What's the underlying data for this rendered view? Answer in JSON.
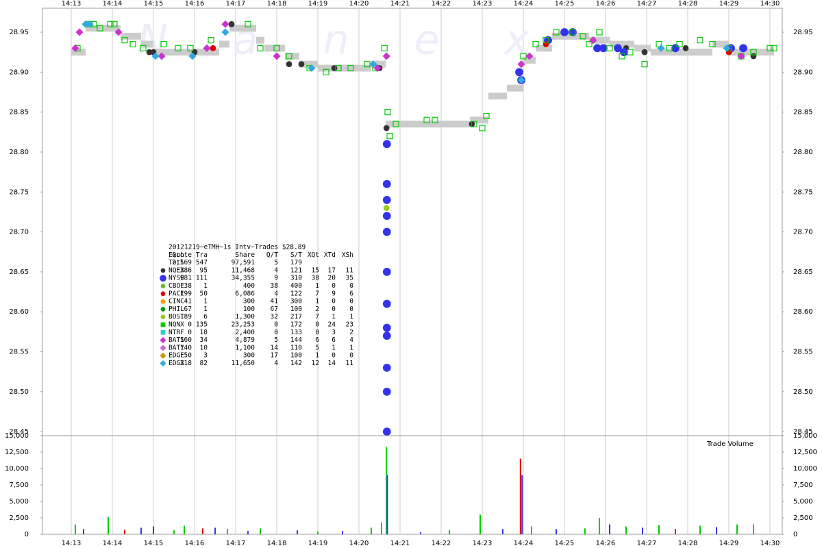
{
  "chart_data": [
    {
      "type": "scatter",
      "watermark": "Nanex",
      "xlim": [
        12.3,
        30.3
      ],
      "xticks": [
        {
          "value": 13,
          "label": "14:13"
        },
        {
          "value": 14,
          "label": "14:14"
        },
        {
          "value": 15,
          "label": "14:15"
        },
        {
          "value": 16,
          "label": "14:16"
        },
        {
          "value": 17,
          "label": "14:17"
        },
        {
          "value": 18,
          "label": "14:18"
        },
        {
          "value": 19,
          "label": "14:19"
        },
        {
          "value": 20,
          "label": "14:20"
        },
        {
          "value": 21,
          "label": "14:21"
        },
        {
          "value": 22,
          "label": "14:22"
        },
        {
          "value": 23,
          "label": "14:23"
        },
        {
          "value": 24,
          "label": "14:24"
        },
        {
          "value": 25,
          "label": "14:25"
        },
        {
          "value": 26,
          "label": "14:26"
        },
        {
          "value": 27,
          "label": "14:27"
        },
        {
          "value": 28,
          "label": "14:28"
        },
        {
          "value": 29,
          "label": "14:29"
        },
        {
          "value": 30,
          "label": "14:30"
        }
      ],
      "ylim": [
        28.445,
        28.98
      ],
      "yticks": [
        28.45,
        {
          "value": 28.5,
          "label": "28.50"
        },
        28.55,
        {
          "value": 28.6,
          "label": "28.60"
        },
        28.65,
        {
          "value": 28.7,
          "label": "28.70"
        },
        28.75,
        {
          "value": 28.8,
          "label": "28.80"
        },
        28.85,
        {
          "value": 28.9,
          "label": "28.90"
        },
        28.95
      ],
      "grid": true,
      "nbbo_band": {
        "color": "#cccccc",
        "edges": [
          13.0,
          13.35,
          14.2,
          14.7,
          15.0,
          15.7,
          16.6,
          16.85,
          17.5,
          17.7,
          18.2,
          18.55,
          19.0,
          19.9,
          20.3,
          20.65,
          21.0,
          22.7,
          23.15,
          23.6,
          24.0,
          24.3,
          24.7,
          25.6,
          26.1,
          26.7,
          27.1,
          28.6,
          29.0,
          30.1
        ],
        "values": [
          28.925,
          28.955,
          28.945,
          28.935,
          28.925,
          28.925,
          28.935,
          28.955,
          28.94,
          28.93,
          28.92,
          28.91,
          28.905,
          28.905,
          28.91,
          28.835,
          28.835,
          28.84,
          28.87,
          28.88,
          28.915,
          28.93,
          28.945,
          28.94,
          28.935,
          28.93,
          28.925,
          28.935,
          28.925
        ]
      },
      "table": {
        "title": "20121219~eTMH~1s Intv~Trades $28.89",
        "header": [
          "Exch",
          "Quote",
          "Tra",
          "Share",
          "Q/T",
          "S/T",
          "XQt",
          "XTd",
          "XSh"
        ],
        "total": {
          "name": "Totl",
          "stats": [
            "2,569",
            "547",
            "97,591",
            "5",
            "179"
          ]
        }
      },
      "series": [
        {
          "name": "NQEX",
          "color": "#333333",
          "marker": "circle",
          "filled": true,
          "stats": [
            "386",
            "95",
            "11,468",
            "4",
            "121",
            "15",
            "17",
            "11"
          ],
          "x": [
            14.9,
            15.0,
            16.0,
            16.9,
            18.3,
            18.6,
            19.4,
            20.5,
            20.67,
            22.75,
            26.5,
            26.95,
            27.95,
            29.6
          ],
          "values": [
            28.925,
            28.925,
            28.925,
            28.96,
            28.91,
            28.91,
            28.905,
            28.905,
            28.83,
            28.835,
            28.93,
            28.925,
            28.93,
            28.92
          ]
        },
        {
          "name": "NYSE",
          "color": "#3333ee",
          "marker": "bigcircle",
          "filled": true,
          "stats": [
            "981",
            "111",
            "34,355",
            "9",
            "310",
            "38",
            "20",
            "35"
          ],
          "x": [
            20.68,
            20.68,
            20.68,
            20.68,
            20.68,
            20.68,
            20.68,
            20.68,
            20.68,
            20.68,
            20.68,
            20.68,
            23.9,
            23.95,
            24.6,
            25.0,
            25.2,
            25.8,
            25.95,
            26.3,
            26.45,
            27.7,
            29.05,
            29.35
          ],
          "values": [
            28.81,
            28.76,
            28.74,
            28.72,
            28.7,
            28.65,
            28.61,
            28.58,
            28.57,
            28.53,
            28.5,
            28.45,
            28.9,
            28.89,
            28.94,
            28.95,
            28.95,
            28.93,
            28.93,
            28.93,
            28.925,
            28.93,
            28.93,
            28.93
          ]
        },
        {
          "name": "CBOE",
          "color": "#66bb33",
          "marker": "circle",
          "filled": true,
          "stats": [
            "38",
            "1",
            "400",
            "38",
            "400",
            "1",
            "0",
            "0"
          ],
          "x": [],
          "values": []
        },
        {
          "name": "PACF",
          "color": "#dd0000",
          "marker": "circle",
          "filled": true,
          "stats": [
            "199",
            "50",
            "6,086",
            "4",
            "122",
            "7",
            "9",
            "6"
          ],
          "x": [
            16.45,
            24.55,
            29.0
          ],
          "values": [
            28.93,
            28.935,
            28.925
          ]
        },
        {
          "name": "CINC",
          "color": "#ff9900",
          "marker": "circle",
          "filled": true,
          "stats": [
            "41",
            "1",
            "300",
            "41",
            "300",
            "1",
            "0",
            "0"
          ],
          "x": [],
          "values": []
        },
        {
          "name": "PHIL",
          "color": "#009900",
          "marker": "circle",
          "filled": true,
          "stats": [
            "67",
            "1",
            "100",
            "67",
            "100",
            "2",
            "0",
            "0"
          ],
          "x": [],
          "values": []
        },
        {
          "name": "BOST",
          "color": "#99cc22",
          "marker": "circle",
          "filled": true,
          "stats": [
            "189",
            "6",
            "1,300",
            "32",
            "217",
            "7",
            "1",
            "1"
          ],
          "x": [
            20.67,
            25.7
          ],
          "values": [
            28.73,
            28.94
          ]
        },
        {
          "name": "NQNX",
          "color": "#00cc00",
          "marker": "square",
          "filled": false,
          "stats": [
            "0",
            "135",
            "23,253",
            "0",
            "172",
            "0",
            "24",
            "23"
          ],
          "x": [
            13.15,
            13.45,
            13.55,
            13.7,
            13.95,
            14.05,
            14.3,
            14.5,
            14.75,
            15.25,
            15.6,
            15.9,
            16.4,
            17.3,
            17.6,
            18.0,
            18.3,
            18.8,
            19.2,
            19.5,
            19.8,
            20.2,
            20.4,
            20.62,
            20.7,
            20.75,
            20.9,
            21.65,
            21.85,
            22.8,
            23.0,
            23.1,
            24.0,
            24.3,
            24.55,
            24.8,
            25.2,
            25.45,
            25.6,
            25.85,
            26.1,
            26.4,
            26.6,
            26.95,
            27.3,
            27.55,
            27.8,
            28.3,
            28.6,
            29.0,
            29.3,
            29.6,
            30.0,
            30.1
          ],
          "values": [
            28.93,
            28.96,
            28.96,
            28.955,
            28.96,
            28.96,
            28.94,
            28.935,
            28.93,
            28.935,
            28.93,
            28.93,
            28.94,
            28.96,
            28.93,
            28.93,
            28.92,
            28.905,
            28.9,
            28.905,
            28.905,
            28.91,
            28.905,
            28.93,
            28.85,
            28.82,
            28.835,
            28.84,
            28.84,
            28.835,
            28.83,
            28.845,
            28.92,
            28.935,
            28.94,
            28.95,
            28.95,
            28.945,
            28.935,
            28.95,
            28.93,
            28.92,
            28.925,
            28.91,
            28.935,
            28.93,
            28.935,
            28.94,
            28.935,
            28.93,
            28.92,
            28.925,
            28.93,
            28.93
          ]
        },
        {
          "name": "NTRF",
          "color": "#33cccc",
          "marker": "square",
          "filled": true,
          "stats": [
            "0",
            "18",
            "2,400",
            "0",
            "133",
            "0",
            "3",
            "2"
          ],
          "x": [],
          "values": []
        },
        {
          "name": "BATS",
          "color": "#cc33cc",
          "marker": "diamond",
          "filled": true,
          "stats": [
            "160",
            "34",
            "4,879",
            "5",
            "144",
            "6",
            "6",
            "4"
          ],
          "x": [
            13.1,
            13.2,
            14.15,
            15.2,
            16.3,
            16.75,
            18.0,
            20.45,
            20.67,
            23.95,
            24.15,
            25.7,
            29.3
          ],
          "values": [
            28.93,
            28.95,
            28.95,
            28.92,
            28.93,
            28.96,
            28.92,
            28.905,
            28.92,
            28.91,
            28.92,
            28.94,
            28.92
          ]
        },
        {
          "name": "BATY",
          "color": "#cc66cc",
          "marker": "diamond",
          "filled": true,
          "stats": [
            "140",
            "10",
            "1,100",
            "14",
            "110",
            "5",
            "1",
            "1"
          ],
          "x": [],
          "values": []
        },
        {
          "name": "EDGE",
          "color": "#cc9900",
          "marker": "diamond",
          "filled": true,
          "stats": [
            "50",
            "3",
            "300",
            "17",
            "100",
            "1",
            "0",
            "0"
          ],
          "x": [],
          "values": []
        },
        {
          "name": "EDGX",
          "color": "#33aadd",
          "marker": "diamond",
          "filled": true,
          "stats": [
            "318",
            "82",
            "11,650",
            "4",
            "142",
            "12",
            "14",
            "11"
          ],
          "x": [
            13.35,
            13.45,
            15.05,
            15.95,
            16.75,
            18.85,
            20.35,
            23.95,
            27.35,
            28.95
          ],
          "values": [
            28.96,
            28.96,
            28.92,
            28.92,
            28.95,
            28.905,
            28.91,
            28.89,
            28.93,
            28.93
          ]
        }
      ]
    },
    {
      "type": "bar",
      "label": "Trade Volume",
      "xlim": [
        12.3,
        30.3
      ],
      "xticks": [
        {
          "value": 13,
          "label": "14:13"
        },
        {
          "value": 14,
          "label": "14:14"
        },
        {
          "value": 15,
          "label": "14:15"
        },
        {
          "value": 16,
          "label": "14:16"
        },
        {
          "value": 17,
          "label": "14:17"
        },
        {
          "value": 18,
          "label": "14:18"
        },
        {
          "value": 19,
          "label": "14:19"
        },
        {
          "value": 20,
          "label": "14:20"
        },
        {
          "value": 21,
          "label": "14:21"
        },
        {
          "value": 22,
          "label": "14:22"
        },
        {
          "value": 23,
          "label": "14:23"
        },
        {
          "value": 24,
          "label": "14:24"
        },
        {
          "value": 25,
          "label": "14:25"
        },
        {
          "value": 26,
          "label": "14:26"
        },
        {
          "value": 27,
          "label": "14:27"
        },
        {
          "value": 28,
          "label": "14:28"
        },
        {
          "value": 29,
          "label": "14:29"
        },
        {
          "value": 30,
          "label": "14:30"
        }
      ],
      "ylim": [
        0,
        15000
      ],
      "yticks": [
        0,
        {
          "value": 2500,
          "label": "2,500"
        },
        {
          "value": 5000,
          "label": "5,000"
        },
        {
          "value": 7500,
          "label": "7,500"
        },
        {
          "value": 10000,
          "label": "10,000"
        },
        {
          "value": 12500,
          "label": "12,500"
        },
        {
          "value": 15000,
          "label": "15,000"
        }
      ],
      "grid": true,
      "x": [
        13.1,
        13.3,
        13.9,
        14.3,
        14.7,
        15.0,
        15.5,
        15.75,
        16.2,
        16.5,
        16.8,
        17.3,
        17.6,
        18.5,
        19.0,
        19.6,
        20.3,
        20.55,
        20.67,
        20.69,
        21.5,
        22.2,
        22.95,
        23.5,
        23.93,
        23.97,
        24.2,
        24.8,
        25.5,
        25.85,
        26.1,
        26.5,
        26.9,
        27.3,
        27.7,
        28.3,
        28.7,
        29.2,
        29.6
      ],
      "values": [
        1500,
        800,
        2600,
        700,
        1000,
        1200,
        600,
        1300,
        900,
        1000,
        800,
        500,
        900,
        600,
        400,
        500,
        1000,
        1800,
        13300,
        9000,
        300,
        600,
        3000,
        800,
        11500,
        9000,
        1200,
        800,
        900,
        2500,
        1500,
        1200,
        1000,
        1400,
        800,
        1300,
        1100,
        1500,
        1500
      ],
      "colors": [
        "#00cc00",
        "#3333ee",
        "#00cc00",
        "#dd0000",
        "#3333ee",
        "#3333ee",
        "#00cc00",
        "#00cc00",
        "#dd0000",
        "#3333ee",
        "#00cc00",
        "#3333ee",
        "#00cc00",
        "#3333ee",
        "#00cc00",
        "#3333ee",
        "#00cc00",
        "#00cc00",
        "#00cc00",
        "#3333ee",
        "#3333ee",
        "#00cc00",
        "#00cc00",
        "#3333ee",
        "#dd0000",
        "#3333ee",
        "#00cc00",
        "#3333ee",
        "#00cc00",
        "#00cc00",
        "#3333ee",
        "#00cc00",
        "#3333ee",
        "#00cc00",
        "#dd0000",
        "#00cc00",
        "#3333ee",
        "#00cc00",
        "#00cc00"
      ]
    }
  ]
}
